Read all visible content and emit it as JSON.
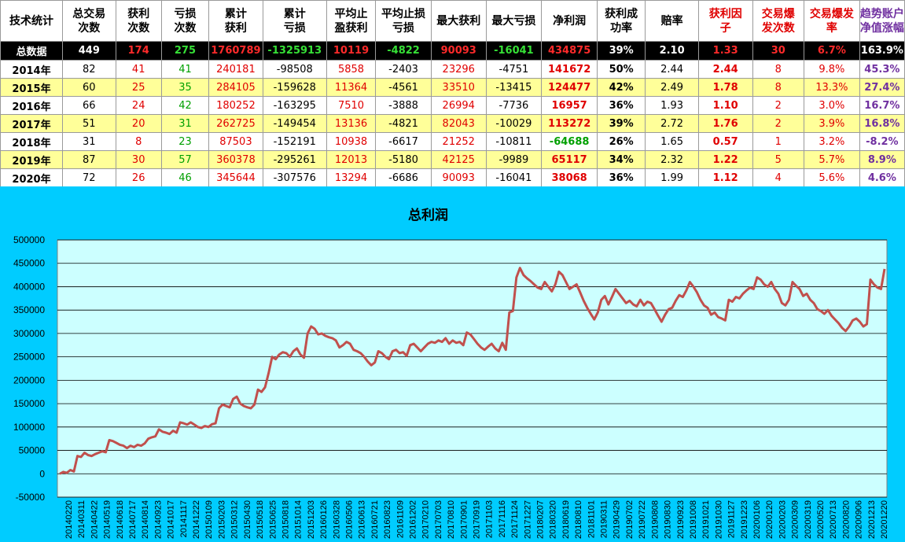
{
  "table": {
    "headers": [
      "技术统计",
      "总交易\n次数",
      "获利\n次数",
      "亏损\n次数",
      "累计\n获利",
      "累计\n亏损",
      "平均止\n盈获利",
      "平均止损\n亏损",
      "最大获利",
      "最大亏损",
      "净利润",
      "获利成\n功率",
      "赔率",
      "获利因\n子",
      "交易爆\n发次数",
      "交易爆发\n率",
      "趋势账户\n净值涨幅"
    ],
    "total": [
      "总数据",
      "449",
      "174",
      "275",
      "1760789",
      "-1325913",
      "10119",
      "-4822",
      "90093",
      "-16041",
      "434875",
      "39%",
      "2.10",
      "1.33",
      "30",
      "6.7%",
      "163.9%"
    ],
    "rows": [
      [
        "2014年",
        "82",
        "41",
        "41",
        "240181",
        "-98508",
        "5858",
        "-2403",
        "23296",
        "-4751",
        "141672",
        "50%",
        "2.44",
        "2.44",
        "8",
        "9.8%",
        "45.3%"
      ],
      [
        "2015年",
        "60",
        "25",
        "35",
        "284105",
        "-159628",
        "11364",
        "-4561",
        "33510",
        "-13415",
        "124477",
        "42%",
        "2.49",
        "1.78",
        "8",
        "13.3%",
        "27.4%"
      ],
      [
        "2016年",
        "66",
        "24",
        "42",
        "180252",
        "-163295",
        "7510",
        "-3888",
        "26994",
        "-7736",
        "16957",
        "36%",
        "1.93",
        "1.10",
        "2",
        "3.0%",
        "16.7%"
      ],
      [
        "2017年",
        "51",
        "20",
        "31",
        "262725",
        "-149454",
        "13136",
        "-4821",
        "82043",
        "-10029",
        "113272",
        "39%",
        "2.72",
        "1.76",
        "2",
        "3.9%",
        "16.8%"
      ],
      [
        "2018年",
        "31",
        "8",
        "23",
        "87503",
        "-152191",
        "10938",
        "-6617",
        "21252",
        "-10811",
        "-64688",
        "26%",
        "1.65",
        "0.57",
        "1",
        "3.2%",
        "-8.2%"
      ],
      [
        "2019年",
        "87",
        "30",
        "57",
        "360378",
        "-295261",
        "12013",
        "-5180",
        "42125",
        "-9989",
        "65117",
        "34%",
        "2.32",
        "1.22",
        "5",
        "5.7%",
        "8.9%"
      ],
      [
        "2020年",
        "72",
        "26",
        "46",
        "345644",
        "-307576",
        "13294",
        "-6686",
        "90093",
        "-16041",
        "38068",
        "36%",
        "1.99",
        "1.12",
        "4",
        "5.6%",
        "4.6%"
      ]
    ]
  },
  "chart_data": {
    "type": "line",
    "title": "总利润",
    "ylim": [
      -50000,
      500000
    ],
    "yticks": [
      "500000",
      "450000",
      "400000",
      "350000",
      "300000",
      "250000",
      "200000",
      "150000",
      "100000",
      "50000",
      "0",
      "-50000"
    ],
    "xticks": [
      "20140220",
      "20140311",
      "20140422",
      "20140519",
      "20140618",
      "20140717",
      "20140814",
      "20140923",
      "20141017",
      "20141117",
      "20141222",
      "20150109",
      "20150203",
      "20150312",
      "20150430",
      "20150518",
      "20150625",
      "20150818",
      "20151014",
      "20151203",
      "20160126",
      "20160328",
      "20160506",
      "20160613",
      "20160721",
      "20160823",
      "20161109",
      "20161202",
      "20170210",
      "20170703",
      "20170810",
      "20170901",
      "20170919",
      "20171103",
      "20171116",
      "20171124",
      "20171227",
      "20180207",
      "20180320",
      "20180619",
      "20180810",
      "20181101",
      "20190311",
      "20190429",
      "20190702",
      "20190722",
      "20190808",
      "20190830",
      "20190923",
      "20191008",
      "20191021",
      "20191030",
      "20191127",
      "20191223",
      "20200106",
      "20200120",
      "20200203",
      "20200309",
      "20200319",
      "20200520",
      "20200713",
      "20200820",
      "20200906",
      "20201213",
      "20201220"
    ],
    "series": [
      {
        "color": "#c0504d",
        "values": [
          0,
          4000,
          2000,
          8000,
          5000,
          38000,
          36000,
          45000,
          40000,
          38000,
          42000,
          45000,
          48000,
          46000,
          72000,
          70000,
          66000,
          62000,
          60000,
          55000,
          60000,
          57000,
          62000,
          60000,
          65000,
          75000,
          78000,
          80000,
          95000,
          90000,
          88000,
          85000,
          92000,
          88000,
          110000,
          108000,
          105000,
          110000,
          105000,
          100000,
          98000,
          102000,
          100000,
          106000,
          108000,
          140000,
          148000,
          145000,
          142000,
          160000,
          165000,
          150000,
          145000,
          142000,
          140000,
          148000,
          180000,
          175000,
          185000,
          215000,
          250000,
          245000,
          255000,
          260000,
          258000,
          250000,
          262000,
          268000,
          255000,
          248000,
          300000,
          315000,
          310000,
          298000,
          300000,
          295000,
          292000,
          290000,
          285000,
          270000,
          275000,
          282000,
          278000,
          265000,
          262000,
          258000,
          250000,
          240000,
          232000,
          238000,
          262000,
          258000,
          250000,
          245000,
          262000,
          265000,
          258000,
          260000,
          252000,
          275000,
          278000,
          270000,
          262000,
          270000,
          278000,
          282000,
          280000,
          285000,
          282000,
          290000,
          278000,
          285000,
          280000,
          282000,
          275000,
          302000,
          298000,
          288000,
          278000,
          270000,
          265000,
          272000,
          278000,
          268000,
          262000,
          280000,
          265000,
          345000,
          348000,
          420000,
          440000,
          425000,
          418000,
          412000,
          405000,
          398000,
          395000,
          410000,
          400000,
          390000,
          405000,
          432000,
          425000,
          410000,
          395000,
          400000,
          405000,
          388000,
          370000,
          355000,
          342000,
          330000,
          345000,
          372000,
          380000,
          362000,
          378000,
          395000,
          385000,
          375000,
          365000,
          370000,
          362000,
          358000,
          372000,
          360000,
          368000,
          365000,
          352000,
          338000,
          325000,
          340000,
          352000,
          355000,
          370000,
          382000,
          378000,
          392000,
          410000,
          400000,
          388000,
          372000,
          360000,
          355000,
          340000,
          345000,
          335000,
          332000,
          328000,
          372000,
          368000,
          378000,
          375000,
          385000,
          392000,
          398000,
          395000,
          420000,
          415000,
          405000,
          400000,
          410000,
          395000,
          385000,
          365000,
          360000,
          372000,
          410000,
          402000,
          395000,
          380000,
          385000,
          372000,
          365000,
          352000,
          348000,
          342000,
          350000,
          338000,
          330000,
          322000,
          312000,
          305000,
          315000,
          328000,
          332000,
          325000,
          315000,
          320000,
          415000,
          405000,
          398000,
          395000,
          438000
        ]
      }
    ]
  }
}
